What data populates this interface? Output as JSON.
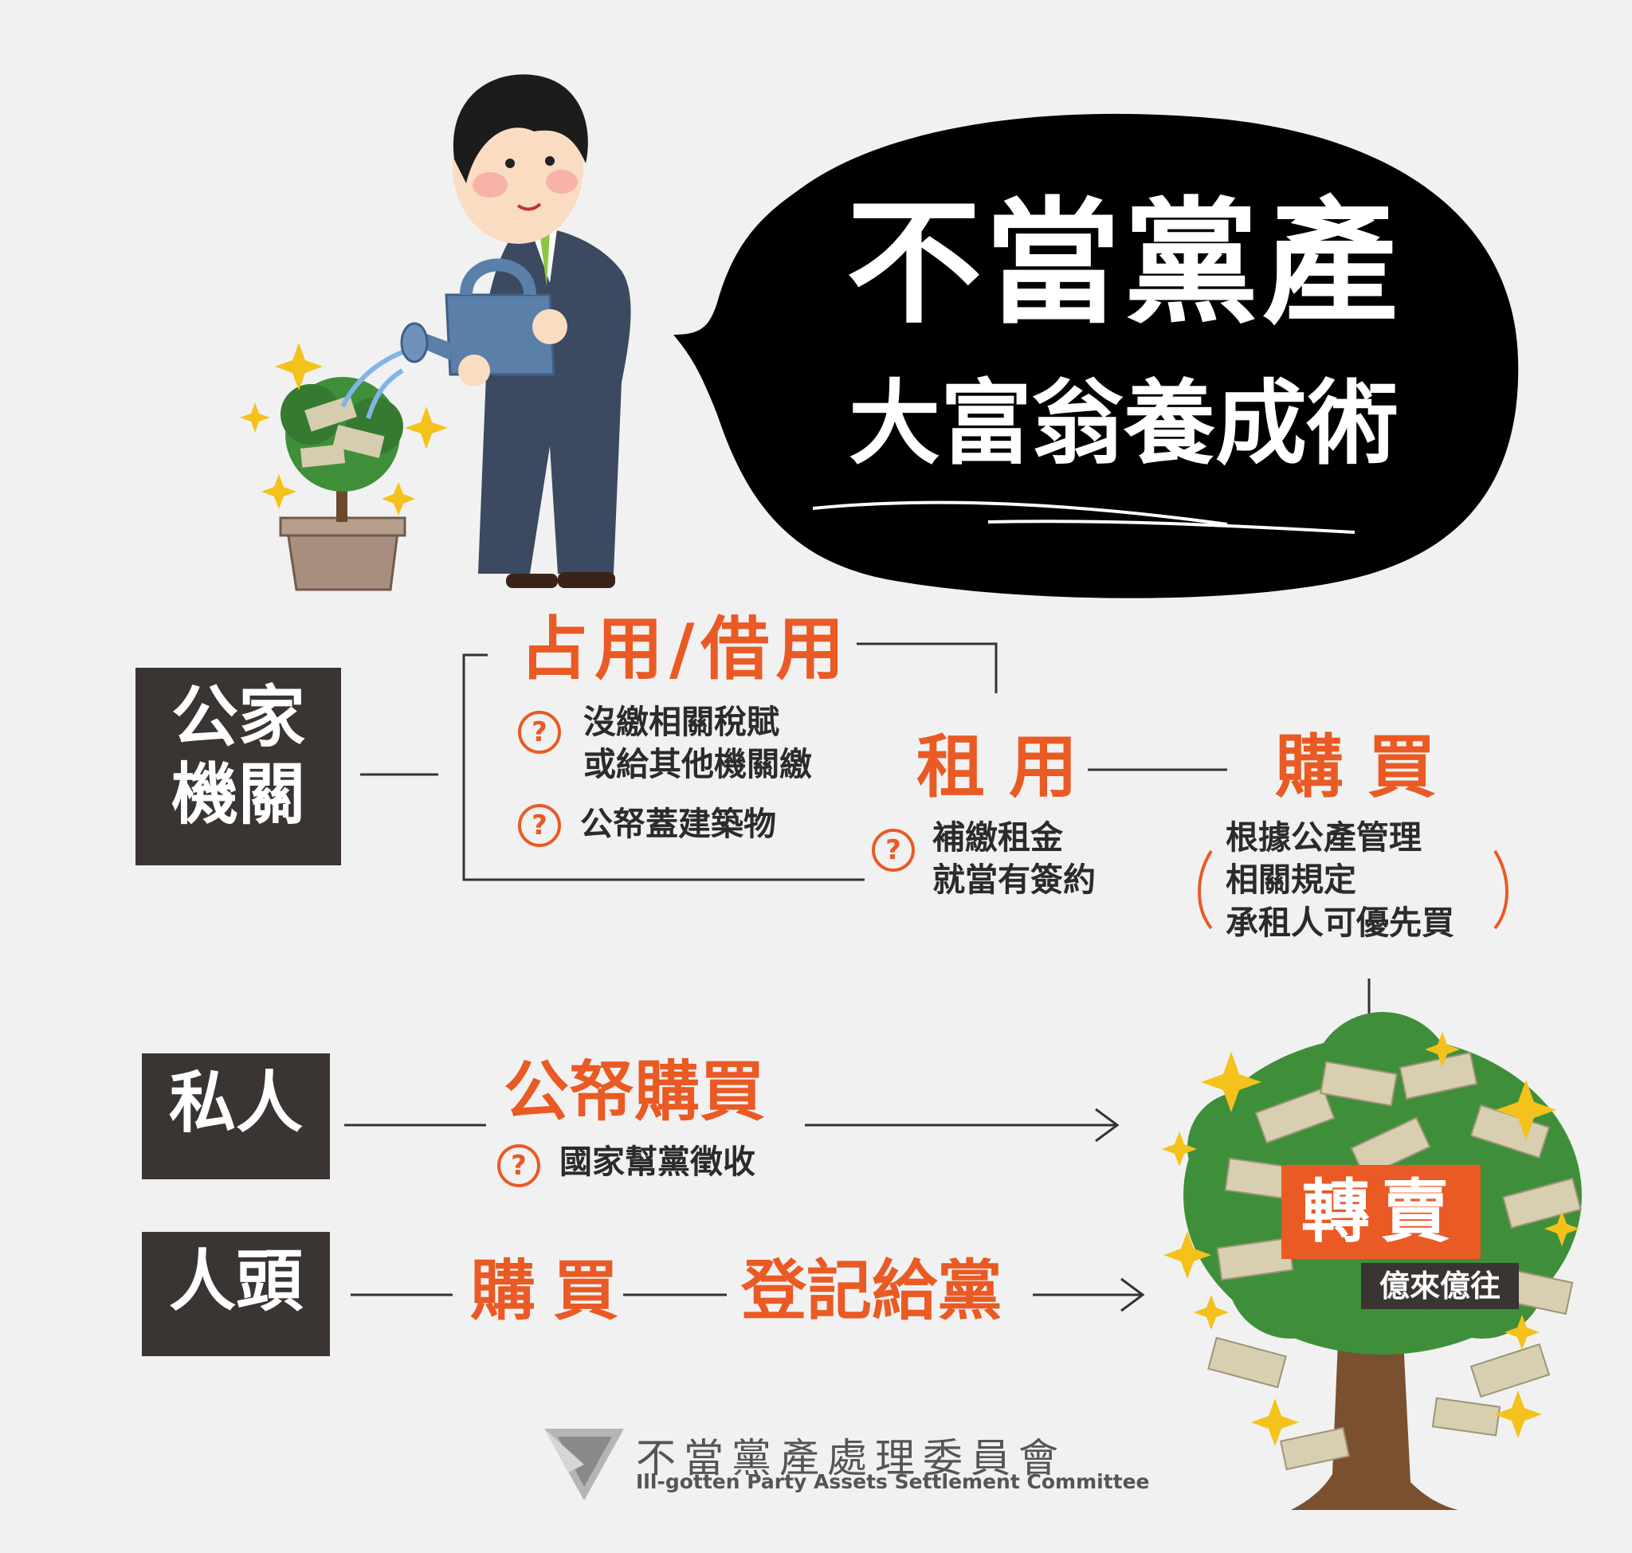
{
  "title": {
    "line1": "不當黨產",
    "line2": "大富翁養成術"
  },
  "public_agency": {
    "label": "公家機關",
    "occupy": {
      "heading": "占用/借用",
      "notes": [
        "沒繳相關稅賦\n或給其他機關繳",
        "公帑蓋建築物"
      ]
    },
    "rent": {
      "heading": "租用",
      "note": "補繳租金\n就當有簽約"
    },
    "buy": {
      "heading": "購買",
      "note": "根據公產管理\n相關規定\n承租人可優先買"
    }
  },
  "private": {
    "label": "私人",
    "heading": "公帑購買",
    "note": "國家幫黨徵收"
  },
  "nominee": {
    "label": "人頭",
    "buy": "購買",
    "register": "登記給黨"
  },
  "resell": {
    "heading": "轉賣",
    "sub": "億來億往"
  },
  "footer": {
    "zh": "不當黨產處理委員會",
    "en": "Ill-gotten Party Assets Settlement Committee"
  },
  "colors": {
    "accent": "#ea5a24",
    "dark": "#3a3533",
    "background": "#f1f1f1",
    "bubble": "#000000"
  }
}
